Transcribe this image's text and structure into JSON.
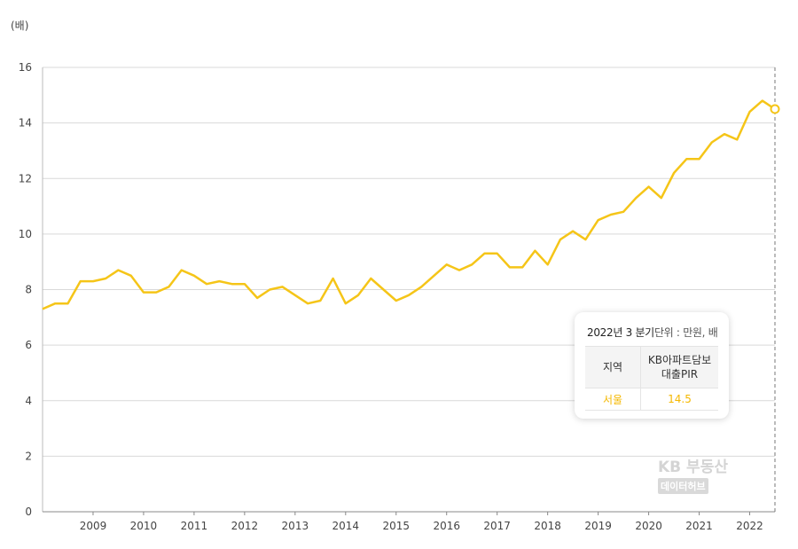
{
  "chart_data": {
    "type": "line",
    "unit_label": "(배)",
    "ylim": [
      0,
      16
    ],
    "yticks": [
      0,
      2,
      4,
      6,
      8,
      10,
      12,
      14,
      16
    ],
    "year_ticks": [
      "2009",
      "2010",
      "2011",
      "2012",
      "2013",
      "2014",
      "2015",
      "2016",
      "2017",
      "2018",
      "2019",
      "2020",
      "2021",
      "2022"
    ],
    "x_start": "2008 Q1",
    "x_end": "2022 Q3",
    "grid": true,
    "line_color": "#f5c518",
    "series": [
      {
        "name": "서울",
        "values": [
          7.3,
          7.5,
          7.5,
          8.3,
          8.3,
          8.4,
          8.7,
          8.5,
          7.9,
          7.9,
          8.1,
          8.7,
          8.5,
          8.2,
          8.3,
          8.2,
          8.2,
          7.7,
          8.0,
          8.1,
          7.8,
          7.5,
          7.6,
          8.4,
          7.5,
          7.8,
          8.4,
          8.0,
          7.6,
          7.8,
          8.1,
          8.5,
          8.9,
          8.7,
          8.9,
          9.3,
          9.3,
          8.8,
          8.8,
          9.4,
          8.9,
          9.8,
          10.1,
          9.8,
          10.5,
          10.7,
          10.8,
          11.3,
          11.7,
          11.3,
          12.2,
          12.7,
          12.7,
          13.3,
          13.6,
          13.4,
          14.4,
          14.8,
          14.5
        ]
      }
    ]
  },
  "tooltip": {
    "period": "2022년 3 분기",
    "unit_text": "단위 : 만원, 배",
    "col_region": "지역",
    "col_metric_line1": "KB아파트담보",
    "col_metric_line2": "대출PIR",
    "row_region": "서울",
    "row_value": "14.5"
  },
  "watermark": {
    "title": "KB 부동산",
    "subtitle": "데이터허브"
  }
}
